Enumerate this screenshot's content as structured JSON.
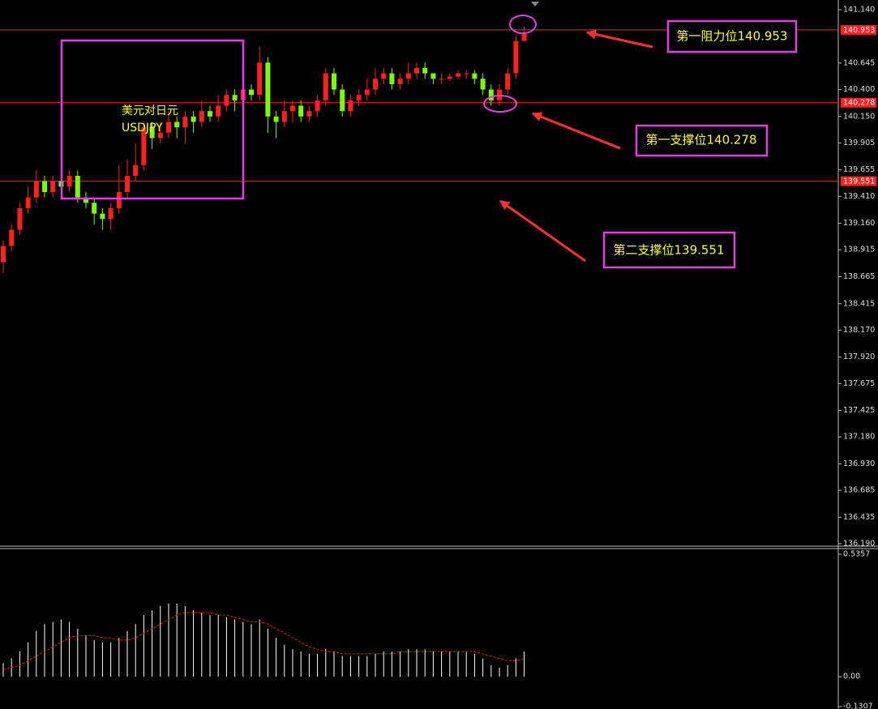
{
  "chart_data": [
    {
      "type": "candlestick",
      "title": "美元对日元",
      "subtitle": "USDJPY",
      "up_color": "#ff2020",
      "down_color": "#7cfc00",
      "open": [
        138.8,
        138.95,
        139.1,
        139.3,
        139.4,
        139.55,
        139.45,
        139.55,
        139.5,
        139.6,
        139.4,
        139.35,
        139.25,
        139.2,
        139.3,
        139.45,
        139.6,
        139.7,
        140.05,
        139.95,
        140.0,
        140.1,
        140.05,
        140.15,
        140.1,
        140.2,
        140.15,
        140.25,
        140.35,
        140.3,
        140.4,
        140.35,
        140.65,
        140.15,
        140.1,
        140.2,
        140.25,
        140.15,
        140.2,
        140.3,
        140.55,
        140.4,
        140.2,
        140.3,
        140.35,
        140.4,
        140.5,
        140.55,
        140.45,
        140.5,
        140.55,
        140.6,
        140.55,
        140.5,
        140.5,
        140.52,
        140.55,
        140.55,
        140.5,
        140.4,
        140.3,
        140.4,
        140.55,
        140.85
      ],
      "high": [
        139.0,
        139.15,
        139.35,
        139.5,
        139.65,
        139.6,
        139.6,
        139.6,
        139.65,
        139.65,
        139.45,
        139.4,
        139.3,
        139.35,
        139.7,
        139.75,
        139.9,
        140.1,
        140.1,
        140.1,
        140.2,
        140.15,
        140.2,
        140.2,
        140.3,
        140.25,
        140.35,
        140.4,
        140.4,
        140.45,
        140.45,
        140.8,
        140.7,
        140.2,
        140.3,
        140.3,
        140.3,
        140.25,
        140.35,
        140.6,
        140.6,
        140.45,
        140.35,
        140.4,
        140.5,
        140.6,
        140.6,
        140.6,
        140.55,
        140.65,
        140.65,
        140.65,
        140.55,
        140.55,
        140.55,
        140.58,
        140.58,
        140.58,
        140.55,
        140.45,
        140.45,
        140.6,
        140.9,
        140.98
      ],
      "low": [
        138.7,
        138.9,
        139.05,
        139.25,
        139.35,
        139.4,
        139.4,
        139.45,
        139.45,
        139.35,
        139.3,
        139.15,
        139.1,
        139.1,
        139.25,
        139.4,
        139.55,
        139.65,
        139.85,
        139.9,
        139.95,
        139.95,
        139.9,
        140.0,
        140.05,
        140.1,
        140.1,
        140.2,
        140.2,
        140.25,
        140.3,
        140.3,
        140.0,
        139.95,
        140.05,
        140.1,
        140.1,
        140.1,
        140.15,
        140.25,
        140.35,
        140.15,
        140.15,
        140.25,
        140.3,
        140.35,
        140.45,
        140.4,
        140.4,
        140.45,
        140.5,
        140.5,
        140.45,
        140.45,
        140.48,
        140.5,
        140.5,
        140.45,
        140.35,
        140.25,
        140.25,
        140.35,
        140.5,
        140.85
      ],
      "close": [
        138.95,
        139.1,
        139.3,
        139.4,
        139.55,
        139.45,
        139.55,
        139.5,
        139.6,
        139.4,
        139.35,
        139.25,
        139.2,
        139.3,
        139.45,
        139.6,
        139.7,
        140.05,
        139.95,
        140.0,
        140.1,
        140.05,
        140.15,
        140.1,
        140.2,
        140.15,
        140.25,
        140.35,
        140.3,
        140.4,
        140.35,
        140.65,
        140.15,
        140.1,
        140.2,
        140.25,
        140.15,
        140.2,
        140.3,
        140.55,
        140.4,
        140.2,
        140.3,
        140.35,
        140.4,
        140.5,
        140.55,
        140.45,
        140.5,
        140.55,
        140.6,
        140.55,
        140.5,
        140.5,
        140.52,
        140.55,
        140.55,
        140.5,
        140.4,
        140.3,
        140.4,
        140.55,
        140.85,
        140.93
      ],
      "ylim": [
        136.175,
        141.23
      ],
      "yticks": [
        {
          "value": 141.14,
          "label": "141.140"
        },
        {
          "value": 140.645,
          "label": "140.645"
        },
        {
          "value": 140.4,
          "label": "140.400"
        },
        {
          "value": 140.15,
          "label": "140.150"
        },
        {
          "value": 139.905,
          "label": "139.905"
        },
        {
          "value": 139.655,
          "label": "139.655"
        },
        {
          "value": 139.41,
          "label": "139.410"
        },
        {
          "value": 139.16,
          "label": "139.160"
        },
        {
          "value": 138.915,
          "label": "138.915"
        },
        {
          "value": 138.665,
          "label": "138.665"
        },
        {
          "value": 138.415,
          "label": "138.415"
        },
        {
          "value": 138.17,
          "label": "138.170"
        },
        {
          "value": 137.92,
          "label": "137.920"
        },
        {
          "value": 137.675,
          "label": "137.675"
        },
        {
          "value": 137.425,
          "label": "137.425"
        },
        {
          "value": 137.18,
          "label": "137.180"
        },
        {
          "value": 136.93,
          "label": "136.930"
        },
        {
          "value": 136.685,
          "label": "136.685"
        },
        {
          "value": 136.435,
          "label": "136.435"
        },
        {
          "value": 136.19,
          "label": "136.190"
        }
      ],
      "levels": [
        {
          "value": 140.953,
          "label": "140.953",
          "note": "第一阻力位140.953",
          "color": "#ff2020"
        },
        {
          "value": 140.278,
          "label": "140.278",
          "note": "第一支撑位140.278",
          "color": "#ff2020"
        },
        {
          "value": 139.551,
          "label": "139.551",
          "note": "第二支撑位139.551",
          "color": "#ff2020"
        }
      ]
    },
    {
      "type": "bar",
      "color": "#ffffff",
      "values": [
        0.06,
        0.08,
        0.11,
        0.15,
        0.2,
        0.23,
        0.24,
        0.25,
        0.24,
        0.21,
        0.18,
        0.16,
        0.15,
        0.15,
        0.17,
        0.2,
        0.23,
        0.27,
        0.29,
        0.31,
        0.32,
        0.32,
        0.31,
        0.29,
        0.28,
        0.27,
        0.27,
        0.26,
        0.25,
        0.24,
        0.23,
        0.25,
        0.21,
        0.17,
        0.14,
        0.12,
        0.11,
        0.1,
        0.1,
        0.12,
        0.11,
        0.09,
        0.09,
        0.09,
        0.09,
        0.1,
        0.11,
        0.11,
        0.11,
        0.12,
        0.12,
        0.12,
        0.11,
        0.11,
        0.11,
        0.11,
        0.11,
        0.1,
        0.08,
        0.05,
        0.04,
        0.05,
        0.08,
        0.11
      ],
      "signal": {
        "color": "#e02020",
        "values": [
          0.03,
          0.04,
          0.05,
          0.07,
          0.09,
          0.11,
          0.13,
          0.15,
          0.17,
          0.18,
          0.18,
          0.18,
          0.17,
          0.17,
          0.16,
          0.16,
          0.17,
          0.19,
          0.21,
          0.23,
          0.25,
          0.27,
          0.28,
          0.28,
          0.28,
          0.28,
          0.27,
          0.27,
          0.26,
          0.25,
          0.24,
          0.24,
          0.23,
          0.21,
          0.19,
          0.17,
          0.15,
          0.13,
          0.12,
          0.11,
          0.11,
          0.1,
          0.1,
          0.1,
          0.1,
          0.1,
          0.1,
          0.1,
          0.11,
          0.11,
          0.11,
          0.11,
          0.11,
          0.11,
          0.11,
          0.11,
          0.11,
          0.11,
          0.1,
          0.09,
          0.08,
          0.07,
          0.07,
          0.08
        ]
      },
      "ylim": [
        -0.1307,
        0.5357
      ],
      "yticks": [
        0.5357,
        {
          "value": 0,
          "label": "0.00"
        },
        -0.1307
      ]
    }
  ]
}
